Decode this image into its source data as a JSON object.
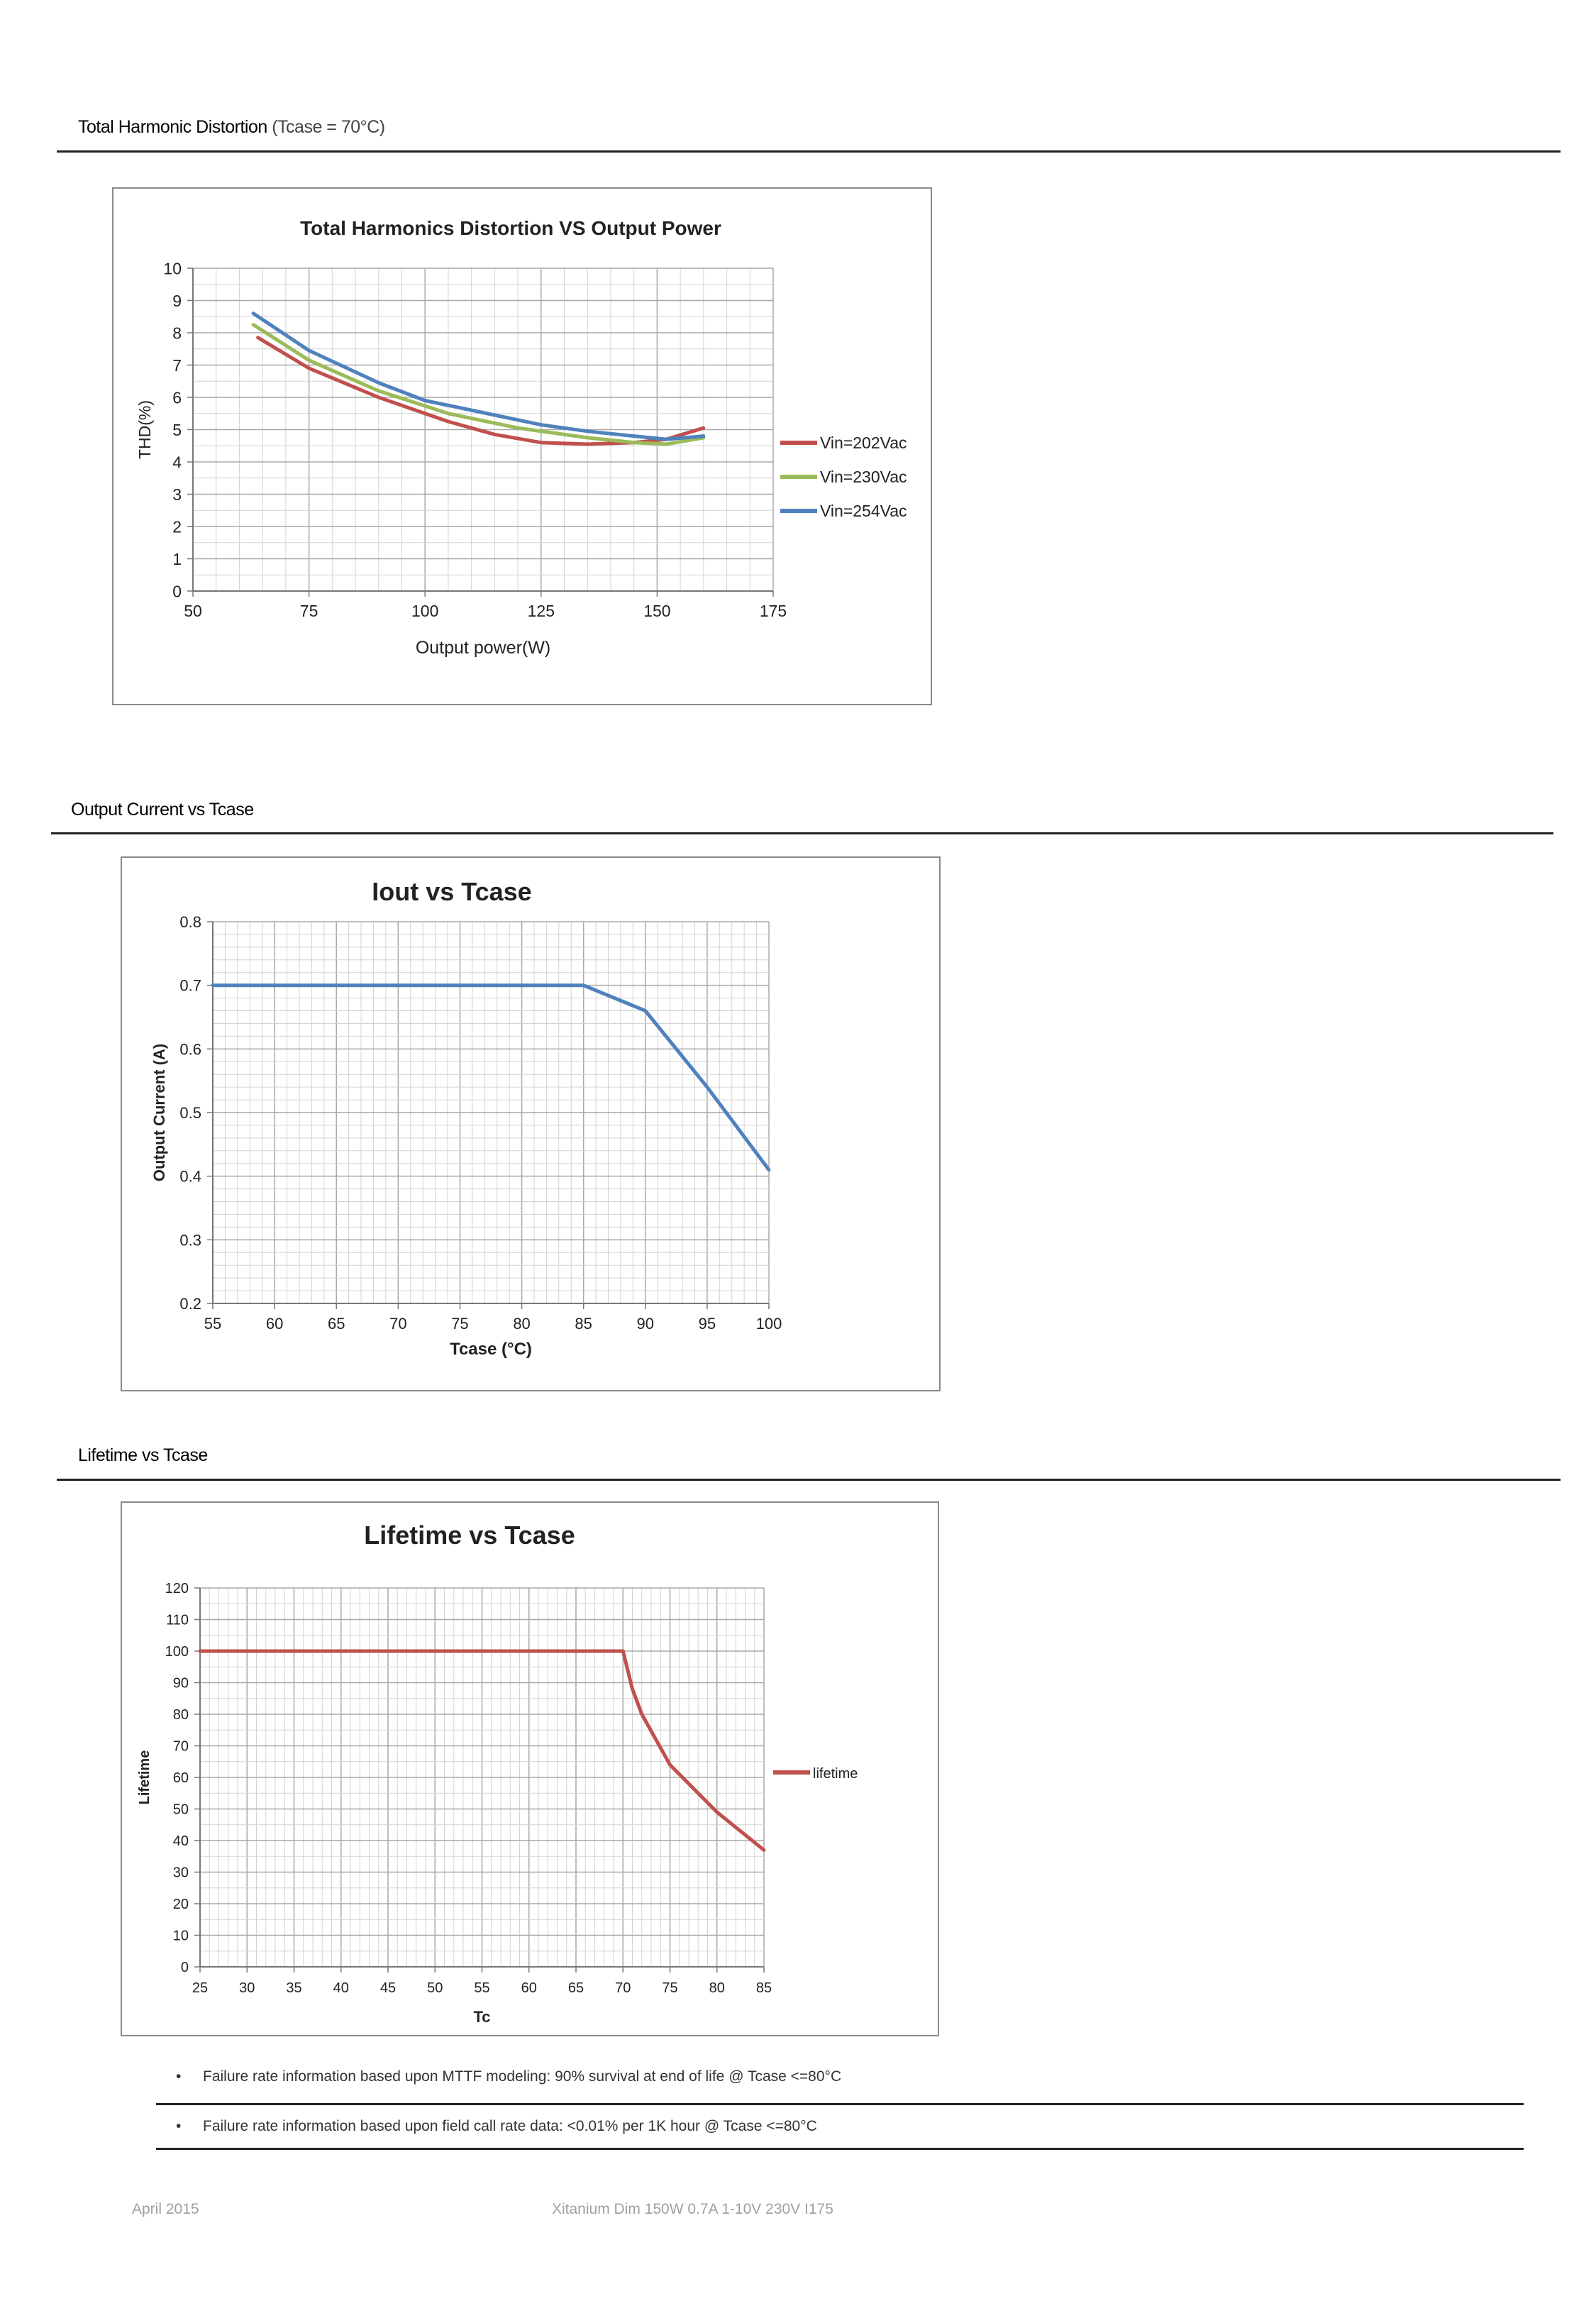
{
  "sections": {
    "thd": {
      "heading": "Total Harmonic Distortion",
      "note": "(Tcase = 70°C)"
    },
    "iout": {
      "heading": "Output Current vs Tcase"
    },
    "lifetime": {
      "heading": "Lifetime vs Tcase"
    }
  },
  "chart_data": [
    {
      "id": "thd",
      "type": "line",
      "title": "Total Harmonics Distortion VS Output Power",
      "xlabel": "Output power(W)",
      "ylabel": "THD(%)",
      "xlim": [
        50,
        175
      ],
      "ylim": [
        0,
        10
      ],
      "xticks": [
        50,
        75,
        100,
        125,
        150,
        175
      ],
      "yticks": [
        0,
        1,
        2,
        3,
        4,
        5,
        6,
        7,
        8,
        9,
        10
      ],
      "grid": true,
      "legend": "right",
      "series": [
        {
          "name": "Vin=202Vac",
          "color": "#c0504d",
          "points": [
            [
              64,
              7.85
            ],
            [
              75,
              6.9
            ],
            [
              90,
              6.0
            ],
            [
              105,
              5.25
            ],
            [
              115,
              4.85
            ],
            [
              125,
              4.6
            ],
            [
              135,
              4.55
            ],
            [
              145,
              4.6
            ],
            [
              152,
              4.7
            ],
            [
              160,
              5.05
            ]
          ]
        },
        {
          "name": "Vin=230Vac",
          "color": "#9bbb59",
          "points": [
            [
              63,
              8.25
            ],
            [
              75,
              7.15
            ],
            [
              90,
              6.2
            ],
            [
              105,
              5.5
            ],
            [
              120,
              5.05
            ],
            [
              135,
              4.75
            ],
            [
              145,
              4.6
            ],
            [
              152,
              4.55
            ],
            [
              160,
              4.75
            ]
          ]
        },
        {
          "name": "Vin=254Vac",
          "color": "#4f81bd",
          "points": [
            [
              63,
              8.6
            ],
            [
              75,
              7.45
            ],
            [
              90,
              6.45
            ],
            [
              100,
              5.9
            ],
            [
              115,
              5.45
            ],
            [
              125,
              5.15
            ],
            [
              135,
              4.95
            ],
            [
              145,
              4.8
            ],
            [
              152,
              4.7
            ],
            [
              160,
              4.8
            ]
          ]
        }
      ]
    },
    {
      "id": "iout",
      "type": "line",
      "title": "Iout vs Tcase",
      "xlabel": "Tcase (°C)",
      "ylabel": "Output Current (A)",
      "xlim": [
        55,
        100
      ],
      "ylim": [
        0.2,
        0.8
      ],
      "xticks": [
        55,
        60,
        65,
        70,
        75,
        80,
        85,
        90,
        95,
        100
      ],
      "yticks": [
        0.2,
        0.3,
        0.4,
        0.5,
        0.6,
        0.7,
        0.8
      ],
      "grid": true,
      "legend": "none",
      "series": [
        {
          "color": "#4f81bd",
          "points": [
            [
              55,
              0.7
            ],
            [
              85,
              0.7
            ],
            [
              90,
              0.66
            ],
            [
              95,
              0.54
            ],
            [
              100,
              0.41
            ]
          ]
        }
      ]
    },
    {
      "id": "lifetime",
      "type": "line",
      "title": "Lifetime vs Tcase",
      "xlabel": "Tc",
      "ylabel": "Lifetime",
      "xlim": [
        25,
        85
      ],
      "ylim": [
        0,
        120
      ],
      "xticks": [
        25,
        30,
        35,
        40,
        45,
        50,
        55,
        60,
        65,
        70,
        75,
        80,
        85
      ],
      "yticks": [
        0,
        10,
        20,
        30,
        40,
        50,
        60,
        70,
        80,
        90,
        100,
        110,
        120
      ],
      "grid": true,
      "legend": "right",
      "series": [
        {
          "name": "lifetime",
          "color": "#c0504d",
          "points": [
            [
              25,
              100
            ],
            [
              70,
              100
            ],
            [
              71,
              88
            ],
            [
              72,
              80
            ],
            [
              75,
              64
            ],
            [
              80,
              49
            ],
            [
              85,
              37
            ]
          ]
        }
      ]
    }
  ],
  "notes": [
    "Failure rate information based upon MTTF modeling: 90% survival at end of life @ Tcase <=80°C",
    "Failure rate information based upon field call rate data: <0.01% per 1K hour @ Tcase <=80°C"
  ],
  "bullet_glyph": "•",
  "footer": {
    "date": "April 2015",
    "product": "Xitanium Dim 150W 0.7A 1-10V 230V I175"
  }
}
